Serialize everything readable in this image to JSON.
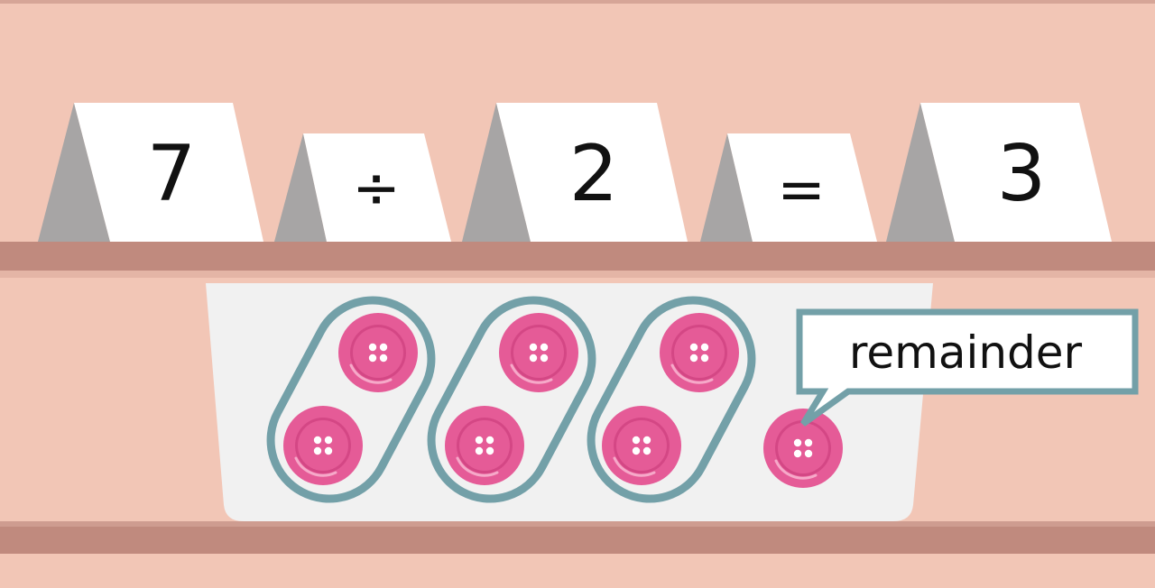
{
  "equation": {
    "dividend": "7",
    "divide_sign": "÷",
    "divisor": "2",
    "equals_sign": "=",
    "quotient": "3"
  },
  "callout": {
    "label": "remainder"
  },
  "buttons": {
    "total": 7,
    "groups": 3,
    "per_group": 2,
    "remainder": 1
  },
  "colors": {
    "background": "#F2C6B6",
    "shelf": "#C08A7E",
    "shelf_top": "#CE9C90",
    "card": "#FFFFFF",
    "card_shadow": "#A7A5A5",
    "tray": "#F1F1F1",
    "group_outline": "#73A0A8",
    "button": "#E55B97",
    "button_rim": "#D44785",
    "text": "#111111"
  }
}
